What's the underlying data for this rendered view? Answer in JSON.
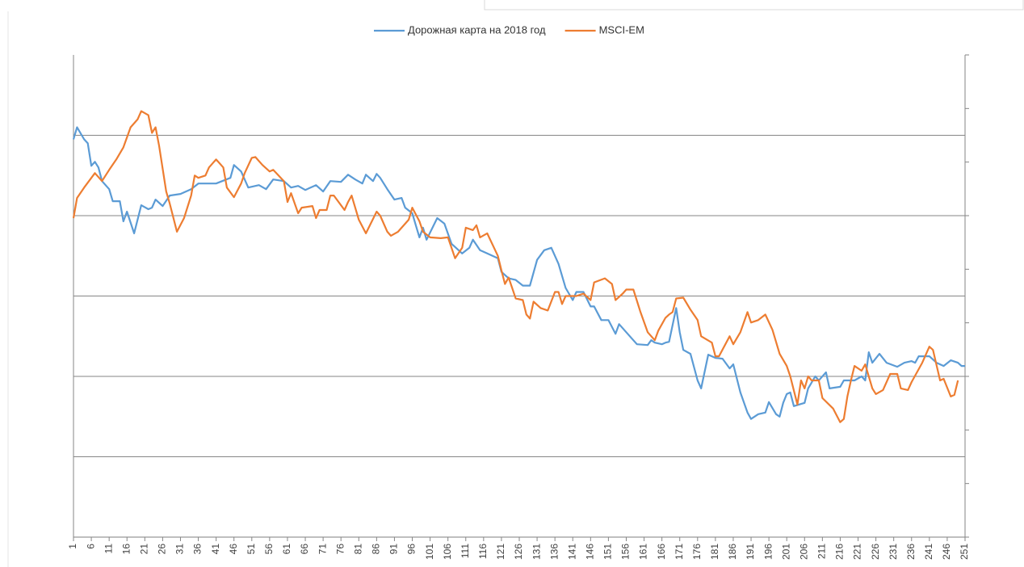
{
  "chart_data": {
    "type": "line",
    "xlim": [
      1,
      251
    ],
    "xticks": [
      1,
      6,
      11,
      16,
      21,
      26,
      31,
      36,
      41,
      46,
      51,
      56,
      61,
      66,
      71,
      76,
      81,
      86,
      91,
      96,
      101,
      106,
      111,
      116,
      121,
      126,
      131,
      136,
      141,
      146,
      151,
      156,
      161,
      166,
      171,
      176,
      181,
      186,
      191,
      196,
      201,
      206,
      211,
      216,
      221,
      226,
      231,
      236,
      241,
      246,
      251
    ],
    "ylim": [
      0,
      600
    ],
    "yticks": [
      0,
      100,
      200,
      300,
      400,
      500
    ],
    "grid": true,
    "y2lim": [
      0,
      9
    ],
    "y2ticks": [
      0,
      1,
      2,
      3,
      4,
      5,
      6,
      7,
      8,
      9
    ],
    "legend": "top",
    "series": [
      {
        "name": "Дорожная карта на 2018 год",
        "color": "#5b9bd5",
        "x": [
          1,
          2,
          4,
          5,
          6,
          7,
          8,
          9,
          11,
          12,
          14,
          15,
          16,
          18,
          20,
          22,
          23,
          24,
          26,
          28,
          31,
          34,
          36,
          39,
          41,
          45,
          46,
          48,
          50,
          53,
          55,
          57,
          60,
          62,
          64,
          66,
          69,
          71,
          73,
          76,
          78,
          80,
          82,
          83,
          85,
          86,
          87,
          89,
          91,
          93,
          94,
          96,
          97,
          98,
          99,
          100,
          103,
          105,
          107,
          110,
          112,
          113,
          115,
          117,
          120,
          121,
          123,
          125,
          127,
          129,
          131,
          133,
          135,
          137,
          139,
          141,
          142,
          144,
          146,
          147,
          149,
          151,
          153,
          154,
          157,
          159,
          162,
          163,
          164,
          166,
          167,
          168,
          170,
          171,
          172,
          174,
          176,
          177,
          179,
          181,
          183,
          185,
          186,
          188,
          190,
          191,
          193,
          195,
          196,
          198,
          199,
          200,
          201,
          202,
          203,
          206,
          207,
          209,
          210,
          212,
          213,
          216,
          217,
          220,
          222,
          223,
          224,
          225,
          227,
          229,
          232,
          234,
          236,
          237,
          238,
          241,
          243,
          245,
          247,
          249,
          250,
          251
        ],
        "values": [
          495,
          510,
          495,
          490,
          462,
          467,
          460,
          443,
          433,
          418,
          418,
          393,
          405,
          378,
          413,
          408,
          410,
          420,
          412,
          425,
          427,
          433,
          440,
          440,
          440,
          447,
          463,
          455,
          435,
          438,
          433,
          445,
          443,
          435,
          437,
          432,
          438,
          430,
          443,
          442,
          451,
          445,
          440,
          451,
          443,
          452,
          447,
          433,
          420,
          422,
          410,
          403,
          388,
          373,
          385,
          370,
          397,
          390,
          365,
          353,
          360,
          370,
          357,
          353,
          347,
          330,
          322,
          320,
          313,
          313,
          345,
          357,
          360,
          340,
          310,
          295,
          305,
          305,
          287,
          287,
          270,
          270,
          253,
          265,
          250,
          240,
          239,
          245,
          242,
          240,
          242,
          243,
          285,
          255,
          233,
          228,
          195,
          185,
          227,
          223,
          222,
          210,
          215,
          180,
          155,
          147,
          153,
          155,
          168,
          153,
          150,
          167,
          178,
          180,
          163,
          167,
          185,
          200,
          195,
          205,
          185,
          187,
          195,
          195,
          200,
          195,
          230,
          217,
          228,
          217,
          212,
          217,
          219,
          217,
          225,
          225,
          217,
          213,
          220,
          217,
          213,
          213
        ]
      },
      {
        "name": "MSCI-EM",
        "color": "#ed7d31",
        "x": [
          1,
          2,
          4,
          7,
          9,
          11,
          13,
          15,
          17,
          19,
          20,
          22,
          23,
          24,
          25,
          27,
          28,
          30,
          32,
          34,
          35,
          36,
          38,
          39,
          40,
          41,
          43,
          44,
          46,
          48,
          49,
          51,
          52,
          54,
          56,
          57,
          60,
          61,
          62,
          64,
          65,
          68,
          69,
          70,
          72,
          73,
          74,
          77,
          78,
          79,
          81,
          83,
          86,
          87,
          89,
          90,
          92,
          95,
          96,
          98,
          99,
          101,
          104,
          106,
          108,
          110,
          111,
          113,
          114,
          115,
          117,
          120,
          121,
          122,
          123,
          125,
          127,
          128,
          129,
          130,
          132,
          134,
          136,
          137,
          138,
          139,
          142,
          144,
          146,
          147,
          150,
          152,
          153,
          155,
          156,
          158,
          160,
          162,
          164,
          165,
          167,
          168,
          169,
          170,
          172,
          174,
          176,
          177,
          180,
          181,
          182,
          185,
          186,
          188,
          190,
          191,
          193,
          195,
          197,
          199,
          201,
          202,
          204,
          205,
          206,
          207,
          208,
          210,
          211,
          214,
          216,
          217,
          218,
          219,
          220,
          222,
          223,
          225,
          226,
          228,
          230,
          232,
          233,
          235,
          236,
          239,
          241,
          242,
          244,
          245,
          247,
          248,
          249
        ],
        "values": [
          397,
          422,
          435,
          453,
          443,
          457,
          470,
          485,
          510,
          520,
          530,
          525,
          503,
          510,
          487,
          430,
          415,
          380,
          397,
          425,
          450,
          447,
          450,
          460,
          465,
          470,
          460,
          435,
          423,
          440,
          453,
          472,
          473,
          463,
          455,
          457,
          443,
          417,
          428,
          403,
          410,
          412,
          397,
          407,
          407,
          425,
          425,
          407,
          417,
          425,
          395,
          378,
          405,
          400,
          380,
          375,
          380,
          395,
          410,
          393,
          380,
          373,
          372,
          373,
          347,
          360,
          385,
          382,
          388,
          373,
          378,
          350,
          332,
          315,
          323,
          297,
          295,
          277,
          272,
          293,
          285,
          282,
          305,
          305,
          290,
          300,
          300,
          303,
          295,
          317,
          322,
          315,
          295,
          303,
          308,
          308,
          280,
          255,
          245,
          257,
          273,
          277,
          280,
          297,
          298,
          283,
          270,
          250,
          242,
          225,
          225,
          250,
          240,
          255,
          280,
          267,
          270,
          277,
          258,
          228,
          213,
          200,
          165,
          195,
          185,
          200,
          195,
          195,
          173,
          160,
          143,
          147,
          175,
          195,
          213,
          207,
          215,
          185,
          178,
          183,
          203,
          203,
          185,
          183,
          193,
          217,
          237,
          233,
          195,
          197,
          175,
          177,
          195
        ]
      }
    ]
  }
}
